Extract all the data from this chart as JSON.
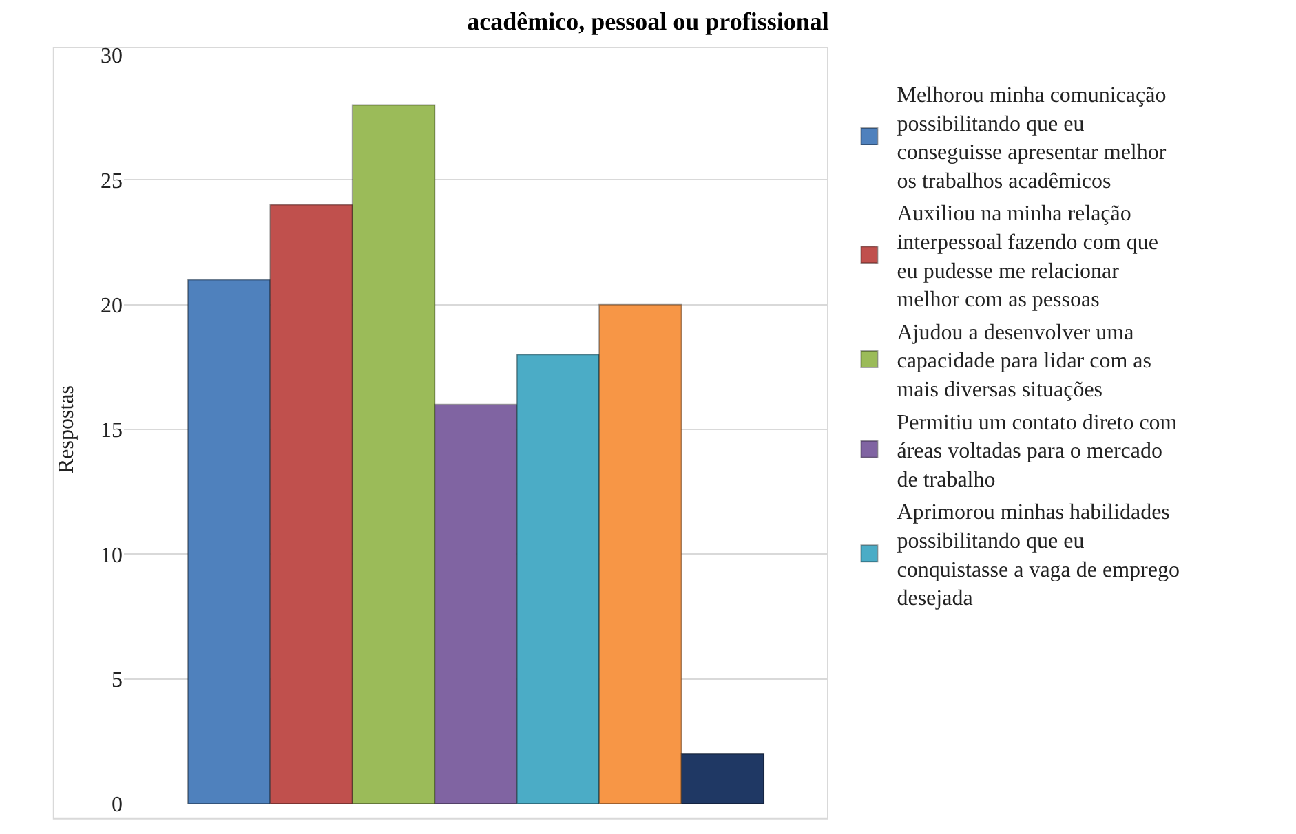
{
  "chart_data": {
    "type": "bar",
    "title": "acadêmico, pessoal ou profissional",
    "ylabel": "Respostas",
    "categories": [
      null
    ],
    "series": [
      {
        "name": "Melhorou minha comunicação possibilitando que eu conseguisse apresentar melhor os trabalhos acadêmicos",
        "color": "#4f81bd",
        "values": [
          21
        ]
      },
      {
        "name": "Auxiliou na minha relação interpessoal fazendo com que eu pudesse me relacionar melhor com as pessoas",
        "color": "#c0504d",
        "values": [
          24
        ]
      },
      {
        "name": "Ajudou a desenvolver uma capacidade para lidar com as mais diversas situações",
        "color": "#9bbb59",
        "values": [
          28
        ]
      },
      {
        "name": "Permitiu um contato direto com áreas voltadas para o mercado de trabalho",
        "color": "#8064a2",
        "values": [
          16
        ]
      },
      {
        "name": "Aprimorou minhas habilidades possibilitando que eu conquistasse a vaga de emprego desejada",
        "color": "#4bacc6",
        "values": [
          18
        ]
      },
      {
        "color": "#f79646",
        "values": [
          20
        ]
      },
      {
        "color": "#1f3864",
        "values": [
          2
        ]
      }
    ],
    "ylim": [
      0,
      30
    ],
    "yticks": [
      0,
      5,
      10,
      15,
      20,
      25,
      30
    ],
    "grid": "y",
    "legend": "right"
  }
}
